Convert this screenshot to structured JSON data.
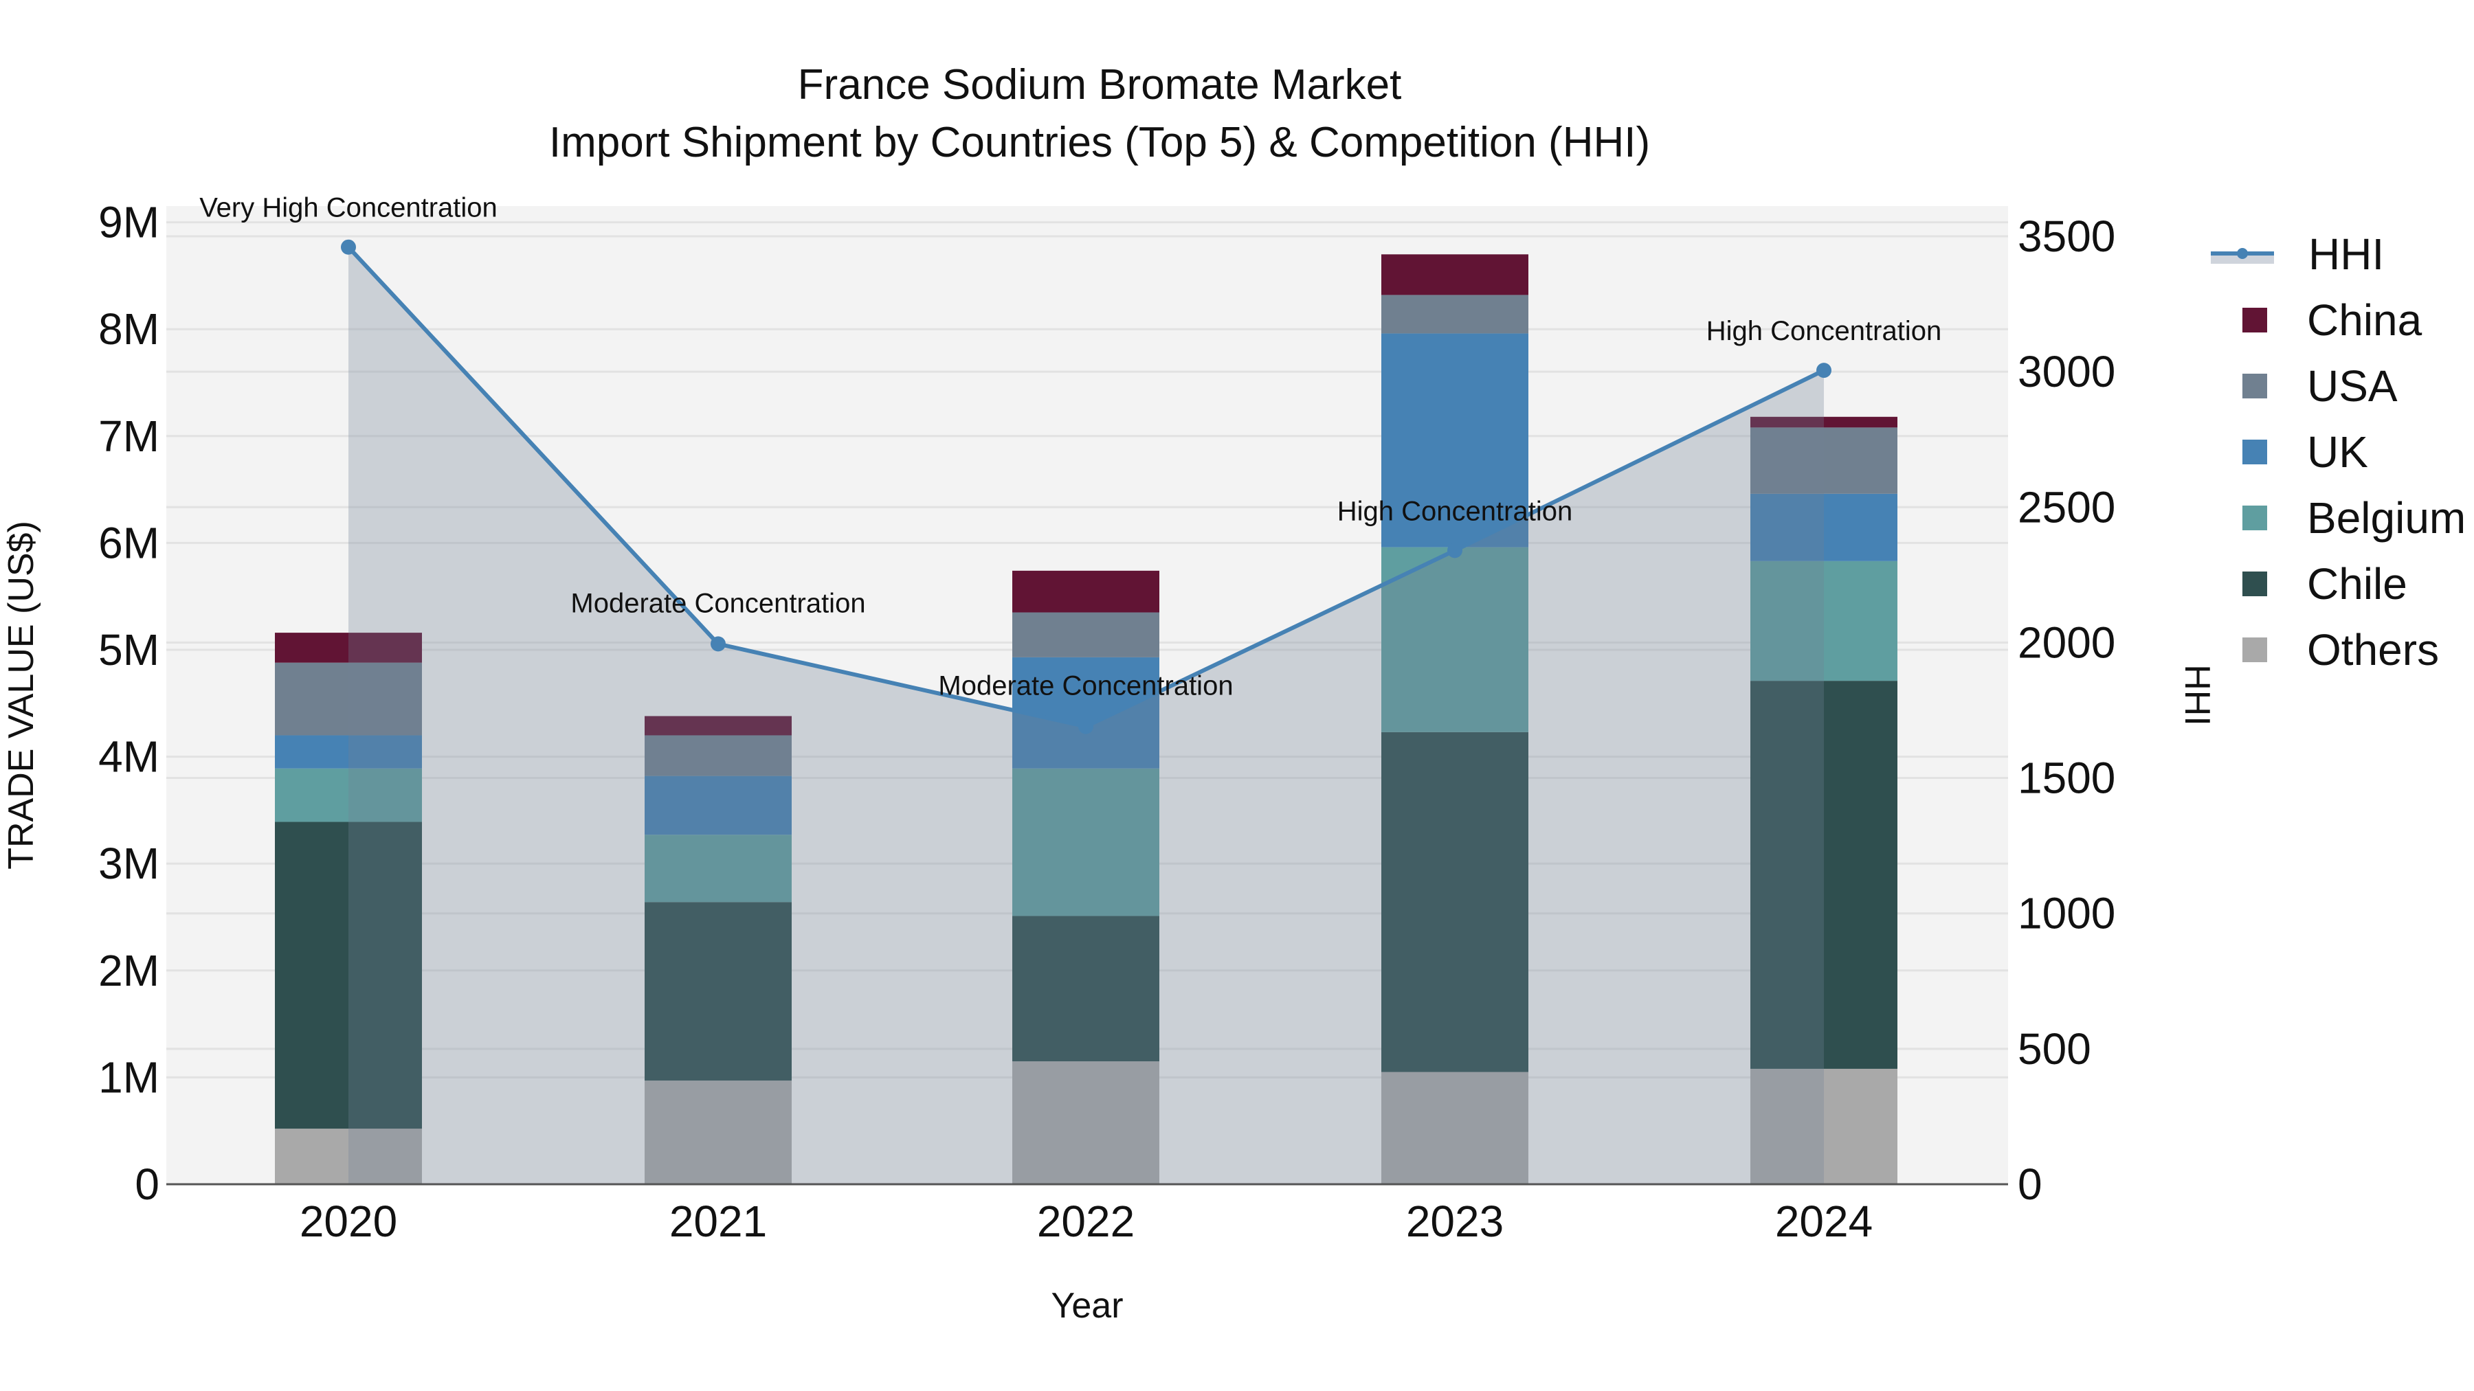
{
  "title": {
    "line1": "France Sodium Bromate Market",
    "line2": "Import Shipment by Countries (Top 5) & Competition (HHI)"
  },
  "axes": {
    "x_label": "Year",
    "y_left_label": "TRADE VALUE (US$)",
    "y_right_label": "HHI",
    "y_left_ticks": [
      "0",
      "1M",
      "2M",
      "3M",
      "4M",
      "5M",
      "6M",
      "7M",
      "8M",
      "9M"
    ],
    "y_right_ticks": [
      "0",
      "500",
      "1000",
      "1500",
      "2000",
      "2500",
      "3000",
      "3500"
    ],
    "x_ticks": [
      "2020",
      "2021",
      "2022",
      "2023",
      "2024"
    ]
  },
  "legend": {
    "items": [
      {
        "label": "HHI",
        "type": "line",
        "color": "#4682b4"
      },
      {
        "label": "China",
        "type": "bar",
        "color": "#611434"
      },
      {
        "label": "USA",
        "type": "bar",
        "color": "#708090"
      },
      {
        "label": "UK",
        "type": "bar",
        "color": "#4682b4"
      },
      {
        "label": "Belgium",
        "type": "bar",
        "color": "#5f9ea0"
      },
      {
        "label": "Chile",
        "type": "bar",
        "color": "#2f4f4f"
      },
      {
        "label": "Others",
        "type": "bar",
        "color": "#a9a9a9"
      }
    ]
  },
  "annotations": [
    {
      "year": "2020",
      "text": "Very High Concentration"
    },
    {
      "year": "2021",
      "text": "Moderate Concentration"
    },
    {
      "year": "2022",
      "text": "Moderate Concentration"
    },
    {
      "year": "2023",
      "text": "High Concentration"
    },
    {
      "year": "2024",
      "text": "High Concentration"
    }
  ],
  "chart_data": {
    "type": "bar",
    "stacked": true,
    "title": "France Sodium Bromate Market — Import Shipment by Countries (Top 5) & Competition (HHI)",
    "xlabel": "Year",
    "ylabel": "TRADE VALUE (US$)",
    "y2label": "HHI",
    "categories": [
      "2020",
      "2021",
      "2022",
      "2023",
      "2024"
    ],
    "ylim": [
      0,
      9000000
    ],
    "y2lim": [
      0,
      3600
    ],
    "grid": true,
    "legend_position": "right",
    "series": [
      {
        "name": "Others",
        "color": "#a9a9a9",
        "values": [
          520000,
          970000,
          1150000,
          1050000,
          1080000
        ]
      },
      {
        "name": "Chile",
        "color": "#2f4f4f",
        "values": [
          2870000,
          1670000,
          1360000,
          3180000,
          3630000
        ]
      },
      {
        "name": "Belgium",
        "color": "#5f9ea0",
        "values": [
          500000,
          630000,
          1380000,
          1730000,
          1120000
        ]
      },
      {
        "name": "UK",
        "color": "#4682b4",
        "values": [
          310000,
          550000,
          1040000,
          2000000,
          630000
        ]
      },
      {
        "name": "USA",
        "color": "#708090",
        "values": [
          680000,
          380000,
          420000,
          360000,
          620000
        ]
      },
      {
        "name": "China",
        "color": "#611434",
        "values": [
          280000,
          180000,
          390000,
          380000,
          100000
        ]
      },
      {
        "name": "HHI",
        "type": "line",
        "axis": "right",
        "color": "#4682b4",
        "values": [
          3460,
          1995,
          1690,
          2340,
          3005
        ]
      }
    ],
    "annotations": [
      "Very High Concentration",
      "Moderate Concentration",
      "Moderate Concentration",
      "High Concentration",
      "High Concentration"
    ]
  }
}
